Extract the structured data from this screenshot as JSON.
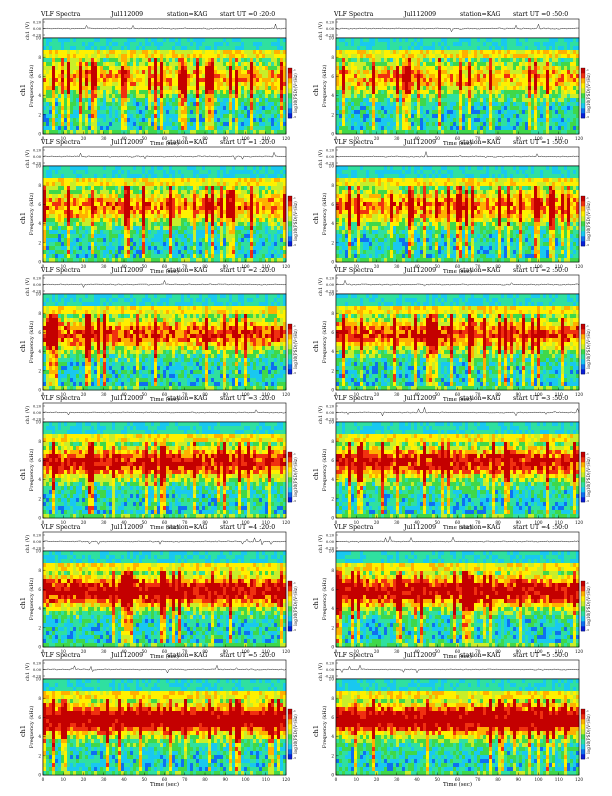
{
  "chart_data": [
    {
      "type": "heatmap",
      "header": {
        "title": "VLF Spectra",
        "date": "Jul112009",
        "station": "station=KAG",
        "start": "start  UT =0 :20:0"
      },
      "ch_label": "ch1 (V)",
      "ch_ticks": [
        "0.20",
        "0.00",
        "-0.20"
      ],
      "ylabel": "Frequency  (kHz)",
      "channel": "ch1",
      "y_ticks": [
        "0",
        "2",
        "4",
        "6",
        "8",
        "10"
      ],
      "ylim": [
        0,
        10
      ],
      "x_ticks": [
        "0",
        "10",
        "20",
        "30",
        "40",
        "50",
        "60",
        "70",
        "80",
        "90",
        "100",
        "110",
        "120"
      ],
      "xlim": [
        0,
        120
      ],
      "xlabel": "Time  (sec)",
      "colorbar_label": "log10(PSD)(V²/Hz)",
      "colorbar_ticks": [
        "-1",
        "-3"
      ]
    },
    {
      "type": "heatmap",
      "header": {
        "title": "VLF Spectra",
        "date": "Jul112009",
        "station": "station=KAG",
        "start": "start  UT =0 :50:0"
      },
      "ch_label": "ch1 (V)",
      "ch_ticks": [
        "0.20",
        "0.00",
        "-0.20"
      ],
      "ylabel": "Frequency  (kHz)",
      "channel": "ch1",
      "y_ticks": [
        "0",
        "2",
        "4",
        "6",
        "8",
        "10"
      ],
      "ylim": [
        0,
        10
      ],
      "x_ticks": [
        "0",
        "10",
        "20",
        "30",
        "40",
        "50",
        "60",
        "70",
        "80",
        "90",
        "100",
        "110",
        "120"
      ],
      "xlim": [
        0,
        120
      ],
      "xlabel": "Time  (sec)",
      "colorbar_label": "log10(PSD)(V²/Hz)",
      "colorbar_ticks": [
        "-1",
        "-3"
      ]
    },
    {
      "type": "heatmap",
      "header": {
        "title": "VLF Spectra",
        "date": "Jul112009",
        "station": "station=KAG",
        "start": "start  UT =1 :20:0"
      },
      "ch_label": "ch1 (V)",
      "ch_ticks": [
        "0.20",
        "0.00",
        "-0.20"
      ],
      "ylabel": "Frequency  (kHz)",
      "channel": "ch1",
      "y_ticks": [
        "0",
        "2",
        "4",
        "6",
        "8",
        "10"
      ],
      "ylim": [
        0,
        10
      ],
      "x_ticks": [
        "0",
        "10",
        "20",
        "30",
        "40",
        "50",
        "60",
        "70",
        "80",
        "90",
        "100",
        "110",
        "120"
      ],
      "xlim": [
        0,
        120
      ],
      "xlabel": "Time  (sec)",
      "colorbar_label": "log10(PSD)(V²/Hz)",
      "colorbar_ticks": [
        "-1",
        "-3"
      ]
    },
    {
      "type": "heatmap",
      "header": {
        "title": "VLF Spectra",
        "date": "Jul112009",
        "station": "station=KAG",
        "start": "start  UT =1 :50:0"
      },
      "ch_label": "ch1 (V)",
      "ch_ticks": [
        "0.20",
        "0.00",
        "-0.20"
      ],
      "ylabel": "Frequency  (kHz)",
      "channel": "ch1",
      "y_ticks": [
        "0",
        "2",
        "4",
        "6",
        "8",
        "10"
      ],
      "ylim": [
        0,
        10
      ],
      "x_ticks": [
        "0",
        "10",
        "20",
        "30",
        "40",
        "50",
        "60",
        "70",
        "80",
        "90",
        "100",
        "110",
        "120"
      ],
      "xlim": [
        0,
        120
      ],
      "xlabel": "Time  (sec)",
      "colorbar_label": "log10(PSD)(V²/Hz)",
      "colorbar_ticks": [
        "-1",
        "-3"
      ]
    },
    {
      "type": "heatmap",
      "header": {
        "title": "VLF Spectra",
        "date": "Jul112009",
        "station": "station=KAG",
        "start": "start  UT =2 :20:0"
      },
      "ch_label": "ch1 (V)",
      "ch_ticks": [
        "0.20",
        "0.00",
        "-0.20"
      ],
      "ylabel": "Frequency  (kHz)",
      "channel": "ch1",
      "y_ticks": [
        "0",
        "2",
        "4",
        "6",
        "8",
        "10"
      ],
      "ylim": [
        0,
        10
      ],
      "x_ticks": [
        "0",
        "10",
        "20",
        "30",
        "40",
        "50",
        "60",
        "70",
        "80",
        "90",
        "100",
        "110",
        "120"
      ],
      "xlim": [
        0,
        120
      ],
      "xlabel": "Time  (sec)",
      "colorbar_label": "log10(PSD)(V²/Hz)",
      "colorbar_ticks": [
        "-1",
        "-3"
      ]
    },
    {
      "type": "heatmap",
      "header": {
        "title": "VLF Spectra",
        "date": "Jul112009",
        "station": "station=KAG",
        "start": "start  UT =2 :50:0"
      },
      "ch_label": "ch1 (V)",
      "ch_ticks": [
        "0.20",
        "0.00",
        "-0.20"
      ],
      "ylabel": "Frequency  (kHz)",
      "channel": "ch1",
      "y_ticks": [
        "0",
        "2",
        "4",
        "6",
        "8",
        "10"
      ],
      "ylim": [
        0,
        10
      ],
      "x_ticks": [
        "0",
        "10",
        "20",
        "30",
        "40",
        "50",
        "60",
        "70",
        "80",
        "90",
        "100",
        "110",
        "120"
      ],
      "xlim": [
        0,
        120
      ],
      "xlabel": "Time  (sec)",
      "colorbar_label": "log10(PSD)(V²/Hz)",
      "colorbar_ticks": [
        "-1",
        "-3"
      ]
    },
    {
      "type": "heatmap",
      "header": {
        "title": "VLF Spectra",
        "date": "Jul112009",
        "station": "station=KAG",
        "start": "start  UT =3 :20:0"
      },
      "ch_label": "ch1 (V)",
      "ch_ticks": [
        "0.20",
        "0.00",
        "-0.20"
      ],
      "ylabel": "Frequency  (kHz)",
      "channel": "ch1",
      "y_ticks": [
        "0",
        "2",
        "4",
        "6",
        "8",
        "10"
      ],
      "ylim": [
        0,
        10
      ],
      "x_ticks": [
        "0",
        "10",
        "20",
        "30",
        "40",
        "50",
        "60",
        "70",
        "80",
        "90",
        "100",
        "110",
        "120"
      ],
      "xlim": [
        0,
        120
      ],
      "xlabel": "Time  (sec)",
      "colorbar_label": "log10(PSD)(V²/Hz)",
      "colorbar_ticks": [
        "-1",
        "-3"
      ]
    },
    {
      "type": "heatmap",
      "header": {
        "title": "VLF Spectra",
        "date": "Jul112009",
        "station": "station=KAG",
        "start": "start  UT =3 :50:0"
      },
      "ch_label": "ch1 (V)",
      "ch_ticks": [
        "0.20",
        "0.00",
        "-0.20"
      ],
      "ylabel": "Frequency  (kHz)",
      "channel": "ch1",
      "y_ticks": [
        "0",
        "2",
        "4",
        "6",
        "8",
        "10"
      ],
      "ylim": [
        0,
        10
      ],
      "x_ticks": [
        "0",
        "10",
        "20",
        "30",
        "40",
        "50",
        "60",
        "70",
        "80",
        "90",
        "100",
        "110",
        "120"
      ],
      "xlim": [
        0,
        120
      ],
      "xlabel": "Time  (sec)",
      "colorbar_label": "log10(PSD)(V²/Hz)",
      "colorbar_ticks": [
        "-1",
        "-3"
      ]
    },
    {
      "type": "heatmap",
      "header": {
        "title": "VLF Spectra",
        "date": "Jul112009",
        "station": "station=KAG",
        "start": "start  UT =4 :20:0"
      },
      "ch_label": "ch1 (V)",
      "ch_ticks": [
        "0.20",
        "0.00",
        "-0.20"
      ],
      "ylabel": "Frequency  (kHz)",
      "channel": "ch1",
      "y_ticks": [
        "0",
        "2",
        "4",
        "6",
        "8",
        "10"
      ],
      "ylim": [
        0,
        10
      ],
      "x_ticks": [
        "0",
        "10",
        "20",
        "30",
        "40",
        "50",
        "60",
        "70",
        "80",
        "90",
        "100",
        "110",
        "120"
      ],
      "xlim": [
        0,
        120
      ],
      "xlabel": "Time  (sec)",
      "colorbar_label": "log10(PSD)(V²/Hz)",
      "colorbar_ticks": [
        "-1",
        "-3"
      ]
    },
    {
      "type": "heatmap",
      "header": {
        "title": "VLF Spectra",
        "date": "Jul112009",
        "station": "station=KAG",
        "start": "start  UT =4 :50:0"
      },
      "ch_label": "ch1 (V)",
      "ch_ticks": [
        "0.20",
        "0.00",
        "-0.20"
      ],
      "ylabel": "Frequency  (kHz)",
      "channel": "ch1",
      "y_ticks": [
        "0",
        "2",
        "4",
        "6",
        "8",
        "10"
      ],
      "ylim": [
        0,
        10
      ],
      "x_ticks": [
        "0",
        "10",
        "20",
        "30",
        "40",
        "50",
        "60",
        "70",
        "80",
        "90",
        "100",
        "110",
        "120"
      ],
      "xlim": [
        0,
        120
      ],
      "xlabel": "Time  (sec)",
      "colorbar_label": "log10(PSD)(V²/Hz)",
      "colorbar_ticks": [
        "-1",
        "-3"
      ]
    },
    {
      "type": "heatmap",
      "header": {
        "title": "VLF Spectra",
        "date": "Jul112009",
        "station": "station=KAG",
        "start": "start  UT =5 :20:0"
      },
      "ch_label": "ch1 (V)",
      "ch_ticks": [
        "0.20",
        "0.00",
        "-0.20"
      ],
      "ylabel": "Frequency  (kHz)",
      "channel": "ch1",
      "y_ticks": [
        "0",
        "2",
        "4",
        "6",
        "8",
        "10"
      ],
      "ylim": [
        0,
        10
      ],
      "x_ticks": [
        "0",
        "10",
        "20",
        "30",
        "40",
        "50",
        "60",
        "70",
        "80",
        "90",
        "100",
        "110",
        "120"
      ],
      "xlim": [
        0,
        120
      ],
      "xlabel": "Time  (sec)",
      "colorbar_label": "log10(PSD)(V²/Hz)",
      "colorbar_ticks": [
        "-1",
        "-3"
      ]
    },
    {
      "type": "heatmap",
      "header": {
        "title": "VLF Spectra",
        "date": "Jul112009",
        "station": "station=KAG",
        "start": "start  UT =5 :50:0"
      },
      "ch_label": "ch1 (V)",
      "ch_ticks": [
        "0.20",
        "0.00",
        "-0.20"
      ],
      "ylabel": "Frequency  (kHz)",
      "channel": "ch1",
      "y_ticks": [
        "0",
        "2",
        "4",
        "6",
        "8",
        "10"
      ],
      "ylim": [
        0,
        10
      ],
      "x_ticks": [
        "0",
        "10",
        "20",
        "30",
        "40",
        "50",
        "60",
        "70",
        "80",
        "90",
        "100",
        "110",
        "120"
      ],
      "xlim": [
        0,
        120
      ],
      "xlabel": "Time  (sec)",
      "colorbar_label": "log10(PSD)(V²/Hz)",
      "colorbar_ticks": [
        "-1",
        "-3"
      ]
    }
  ],
  "colors": {
    "colormap": [
      "#0a1fd8",
      "#0f6ff0",
      "#19c8f0",
      "#2fe0a0",
      "#3fd84a",
      "#c8ee2a",
      "#fff000",
      "#ffb000",
      "#f03010",
      "#c40000"
    ],
    "trace": "#000000",
    "axis": "#000000"
  }
}
